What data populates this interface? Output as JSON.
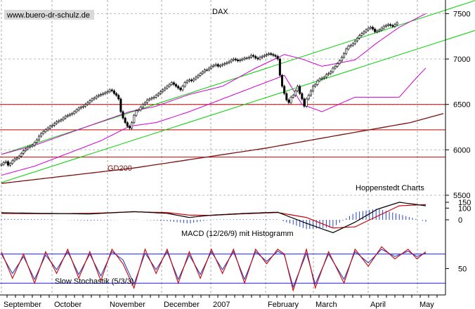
{
  "chart_data": {
    "type": "candlestick",
    "title": "DAX",
    "watermark": "www.buero-dr-schulz.de",
    "source_label": "Hoppenstedt Charts",
    "colors": {
      "price": "#000000",
      "bollinger": "#d000d0",
      "channel": "#00d000",
      "support": "#c00000",
      "gd200": "#7a1010",
      "macd": "#000000",
      "macd_signal": "#d00000",
      "histogram": "#2244cc",
      "stoch_k": "#d00000",
      "stoch_d": "#2244cc",
      "stoch_band": "#1a1aff"
    },
    "months": [
      "September",
      "October",
      "November",
      "December",
      "2007",
      "February",
      "March",
      "April",
      "May"
    ],
    "price_panel": {
      "ylim": [
        5500,
        7650
      ],
      "yticks": [
        5500,
        6000,
        6500,
        7000,
        7500
      ],
      "support_levels": [
        6500,
        6220,
        5920
      ],
      "gd200_label": "GD200",
      "gd200": [
        [
          0,
          5630
        ],
        [
          60,
          5800
        ],
        [
          120,
          6020
        ],
        [
          150,
          6150
        ],
        [
          185,
          6300
        ],
        [
          200,
          6400
        ]
      ],
      "channel_upper": [
        [
          0,
          5950
        ],
        [
          215,
          7650
        ]
      ],
      "channel_lower": [
        [
          0,
          5640
        ],
        [
          215,
          7320
        ]
      ],
      "close": [
        5840,
        5860,
        5870,
        5830,
        5850,
        5880,
        5900,
        5910,
        5930,
        5960,
        5990,
        6010,
        6030,
        6040,
        6050,
        6080,
        6110,
        6150,
        6180,
        6200,
        6220,
        6240,
        6260,
        6270,
        6290,
        6310,
        6320,
        6330,
        6350,
        6370,
        6380,
        6390,
        6400,
        6420,
        6440,
        6460,
        6470,
        6480,
        6500,
        6520,
        6540,
        6560,
        6570,
        6590,
        6600,
        6610,
        6620,
        6630,
        6640,
        6660,
        6650,
        6620,
        6600,
        6560,
        6420,
        6350,
        6300,
        6260,
        6240,
        6300,
        6380,
        6430,
        6440,
        6470,
        6500,
        6520,
        6550,
        6560,
        6570,
        6580,
        6600,
        6620,
        6640,
        6660,
        6680,
        6700,
        6720,
        6740,
        6720,
        6700,
        6680,
        6660,
        6700,
        6740,
        6760,
        6770,
        6760,
        6780,
        6800,
        6820,
        6840,
        6860,
        6880,
        6880,
        6900,
        6920,
        6930,
        6940,
        6920,
        6930,
        6940,
        6950,
        6960,
        6970,
        6990,
        7000,
        6990,
        6980,
        6990,
        7000,
        7010,
        7010,
        7020,
        7040,
        7030,
        7010,
        7000,
        7020,
        7030,
        7040,
        7050,
        7060,
        7050,
        7040,
        7030,
        7000,
        6820,
        6700,
        6620,
        6550,
        6520,
        6580,
        6600,
        6650,
        6700,
        6620,
        6560,
        6480,
        6560,
        6600,
        6650,
        6700,
        6720,
        6760,
        6780,
        6790,
        6800,
        6830,
        6840,
        6860,
        6900,
        6920,
        6950,
        6980,
        7020,
        7060,
        7110,
        7140,
        7150,
        7170,
        7200,
        7230,
        7260,
        7280,
        7300,
        7320,
        7340,
        7350,
        7330,
        7300,
        7310,
        7320,
        7340,
        7360,
        7370,
        7380,
        7370,
        7360,
        7380,
        7400
      ],
      "close_x_start": 0,
      "bb_upper": [
        [
          0,
          5950
        ],
        [
          15,
          6050
        ],
        [
          30,
          6180
        ],
        [
          45,
          6310
        ],
        [
          58,
          6420
        ],
        [
          70,
          6480
        ],
        [
          85,
          6610
        ],
        [
          100,
          6700
        ],
        [
          115,
          6900
        ],
        [
          128,
          7050
        ],
        [
          136,
          7000
        ],
        [
          145,
          6920
        ],
        [
          160,
          6990
        ],
        [
          170,
          7180
        ],
        [
          180,
          7350
        ],
        [
          192,
          7500
        ]
      ],
      "bb_lower": [
        [
          0,
          5720
        ],
        [
          15,
          5820
        ],
        [
          30,
          5960
        ],
        [
          45,
          6100
        ],
        [
          58,
          6260
        ],
        [
          70,
          6300
        ],
        [
          85,
          6420
        ],
        [
          100,
          6560
        ],
        [
          115,
          6700
        ],
        [
          128,
          6820
        ],
        [
          136,
          6500
        ],
        [
          145,
          6420
        ],
        [
          160,
          6580
        ],
        [
          170,
          6580
        ],
        [
          180,
          6580
        ],
        [
          188,
          6800
        ],
        [
          192,
          6900
        ]
      ],
      "bb_mid_hidden": true
    },
    "macd_panel": {
      "label": "MACD (12/26/9) mit Histogramm",
      "ylim": [
        -150,
        180
      ],
      "yticks": [
        150,
        100,
        0
      ],
      "macd": [
        [
          0,
          60
        ],
        [
          20,
          55
        ],
        [
          40,
          50
        ],
        [
          60,
          70
        ],
        [
          75,
          55
        ],
        [
          85,
          20
        ],
        [
          95,
          40
        ],
        [
          110,
          55
        ],
        [
          125,
          65
        ],
        [
          138,
          -30
        ],
        [
          150,
          -110
        ],
        [
          160,
          -20
        ],
        [
          170,
          90
        ],
        [
          180,
          150
        ],
        [
          192,
          120
        ]
      ],
      "signal": [
        [
          0,
          55
        ],
        [
          20,
          52
        ],
        [
          40,
          55
        ],
        [
          60,
          68
        ],
        [
          75,
          62
        ],
        [
          85,
          40
        ],
        [
          95,
          38
        ],
        [
          110,
          52
        ],
        [
          125,
          62
        ],
        [
          138,
          20
        ],
        [
          150,
          -70
        ],
        [
          160,
          -60
        ],
        [
          170,
          30
        ],
        [
          180,
          120
        ],
        [
          192,
          130
        ]
      ]
    },
    "stoch_panel": {
      "label": "Slow Stochastik (5/3/3)",
      "ylim": [
        0,
        100
      ],
      "yticks": [
        50
      ],
      "bands": [
        80,
        20
      ],
      "k": [
        [
          0,
          85
        ],
        [
          5,
          30
        ],
        [
          10,
          80
        ],
        [
          15,
          20
        ],
        [
          20,
          85
        ],
        [
          25,
          40
        ],
        [
          30,
          90
        ],
        [
          35,
          30
        ],
        [
          40,
          85
        ],
        [
          45,
          25
        ],
        [
          50,
          90
        ],
        [
          55,
          60
        ],
        [
          60,
          10
        ],
        [
          65,
          90
        ],
        [
          70,
          40
        ],
        [
          75,
          90
        ],
        [
          80,
          20
        ],
        [
          85,
          85
        ],
        [
          90,
          30
        ],
        [
          95,
          90
        ],
        [
          100,
          40
        ],
        [
          105,
          90
        ],
        [
          110,
          20
        ],
        [
          115,
          90
        ],
        [
          120,
          60
        ],
        [
          125,
          90
        ],
        [
          128,
          80
        ],
        [
          132,
          5
        ],
        [
          138,
          90
        ],
        [
          142,
          10
        ],
        [
          148,
          85
        ],
        [
          155,
          20
        ],
        [
          160,
          90
        ],
        [
          166,
          55
        ],
        [
          172,
          95
        ],
        [
          178,
          70
        ],
        [
          184,
          90
        ],
        [
          188,
          70
        ],
        [
          192,
          85
        ]
      ],
      "d": [
        [
          0,
          80
        ],
        [
          5,
          40
        ],
        [
          10,
          75
        ],
        [
          15,
          28
        ],
        [
          20,
          78
        ],
        [
          25,
          48
        ],
        [
          30,
          85
        ],
        [
          35,
          38
        ],
        [
          40,
          80
        ],
        [
          45,
          35
        ],
        [
          50,
          85
        ],
        [
          55,
          68
        ],
        [
          60,
          18
        ],
        [
          65,
          82
        ],
        [
          70,
          48
        ],
        [
          75,
          85
        ],
        [
          80,
          28
        ],
        [
          85,
          78
        ],
        [
          90,
          38
        ],
        [
          95,
          85
        ],
        [
          100,
          48
        ],
        [
          105,
          85
        ],
        [
          110,
          28
        ],
        [
          115,
          85
        ],
        [
          120,
          65
        ],
        [
          125,
          86
        ],
        [
          128,
          78
        ],
        [
          132,
          12
        ],
        [
          138,
          82
        ],
        [
          142,
          18
        ],
        [
          148,
          80
        ],
        [
          155,
          28
        ],
        [
          160,
          85
        ],
        [
          166,
          62
        ],
        [
          172,
          90
        ],
        [
          178,
          75
        ],
        [
          184,
          86
        ],
        [
          188,
          75
        ],
        [
          192,
          82
        ]
      ]
    }
  }
}
